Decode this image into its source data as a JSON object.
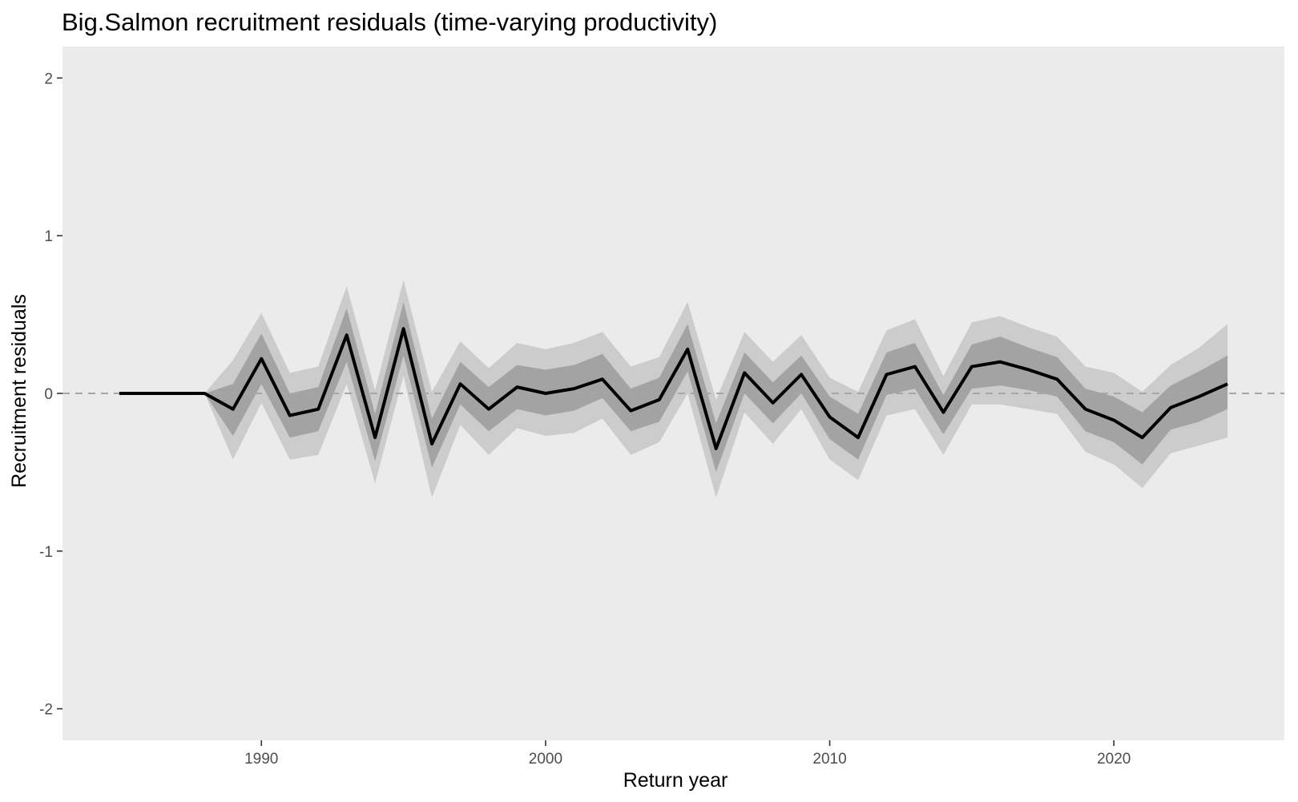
{
  "chart_data": {
    "type": "line",
    "title": "Big.Salmon recruitment residuals (time-varying productivity)",
    "xlabel": "Return year",
    "ylabel": "Recruitment residuals",
    "xlim": [
      1983,
      2026
    ],
    "ylim": [
      -2.2,
      2.2
    ],
    "x_ticks": [
      1990,
      2000,
      2010,
      2020
    ],
    "y_ticks": [
      2,
      1,
      0,
      -1,
      -2
    ],
    "x_tick_labels": [
      "1990",
      "2000",
      "2010",
      "2020"
    ],
    "y_tick_labels": [
      "2",
      "1",
      "0",
      "-1",
      "-2"
    ],
    "reference_line": 0,
    "grid": false,
    "legend": "none",
    "colors": {
      "panel": "#ebebeb",
      "outer_band": "#cccccc",
      "inner_band": "#a3a3a3",
      "line": "#000000",
      "reference": "#a6a6a6"
    },
    "x": [
      1985,
      1986,
      1987,
      1988,
      1989,
      1990,
      1991,
      1992,
      1993,
      1994,
      1995,
      1996,
      1997,
      1998,
      1999,
      2000,
      2001,
      2002,
      2003,
      2004,
      2005,
      2006,
      2007,
      2008,
      2009,
      2010,
      2011,
      2012,
      2013,
      2014,
      2015,
      2016,
      2017,
      2018,
      2019,
      2020,
      2021,
      2022,
      2023,
      2024
    ],
    "series": [
      {
        "values": [
          0,
          0,
          0,
          0,
          -0.1,
          0.22,
          -0.14,
          -0.1,
          0.37,
          -0.28,
          0.41,
          -0.32,
          0.06,
          -0.1,
          0.04,
          0.0,
          0.03,
          0.09,
          -0.11,
          -0.04,
          0.28,
          -0.35,
          0.13,
          -0.06,
          0.12,
          -0.15,
          -0.28,
          0.12,
          0.17,
          -0.12,
          0.17,
          0.2,
          0.15,
          0.09,
          -0.1,
          -0.17,
          -0.28,
          -0.09,
          -0.02,
          0.06
        ]
      }
    ],
    "bands": {
      "outer_lower": [
        0,
        0,
        0,
        0,
        -0.42,
        -0.06,
        -0.42,
        -0.39,
        0.06,
        -0.57,
        0.11,
        -0.66,
        -0.2,
        -0.39,
        -0.22,
        -0.27,
        -0.25,
        -0.16,
        -0.39,
        -0.31,
        0.0,
        -0.66,
        -0.12,
        -0.32,
        -0.1,
        -0.42,
        -0.55,
        -0.14,
        -0.1,
        -0.39,
        -0.07,
        -0.07,
        -0.1,
        -0.13,
        -0.37,
        -0.45,
        -0.6,
        -0.38,
        -0.33,
        -0.28
      ],
      "outer_upper": [
        0,
        0,
        0,
        0,
        0.21,
        0.51,
        0.13,
        0.17,
        0.68,
        0.02,
        0.72,
        0.01,
        0.33,
        0.16,
        0.32,
        0.28,
        0.32,
        0.39,
        0.17,
        0.23,
        0.58,
        -0.04,
        0.39,
        0.2,
        0.37,
        0.1,
        0.01,
        0.4,
        0.47,
        0.11,
        0.45,
        0.49,
        0.42,
        0.36,
        0.17,
        0.13,
        0.01,
        0.18,
        0.29,
        0.44
      ],
      "inner_lower": [
        0,
        0,
        0,
        0,
        -0.27,
        0.06,
        -0.28,
        -0.24,
        0.2,
        -0.43,
        0.24,
        -0.47,
        -0.07,
        -0.24,
        -0.1,
        -0.14,
        -0.11,
        -0.03,
        -0.24,
        -0.18,
        0.14,
        -0.5,
        0.0,
        -0.19,
        0.0,
        -0.29,
        -0.42,
        -0.01,
        0.03,
        -0.26,
        0.03,
        0.05,
        0.02,
        -0.02,
        -0.24,
        -0.31,
        -0.45,
        -0.23,
        -0.18,
        -0.1
      ],
      "inner_upper": [
        0,
        0,
        0,
        0,
        0.06,
        0.38,
        0.0,
        0.04,
        0.54,
        -0.13,
        0.58,
        -0.16,
        0.2,
        0.04,
        0.18,
        0.15,
        0.18,
        0.25,
        0.03,
        0.1,
        0.44,
        -0.19,
        0.26,
        0.07,
        0.24,
        -0.02,
        -0.13,
        0.26,
        0.32,
        -0.01,
        0.31,
        0.36,
        0.29,
        0.23,
        0.03,
        -0.02,
        -0.12,
        0.05,
        0.14,
        0.24
      ]
    }
  }
}
